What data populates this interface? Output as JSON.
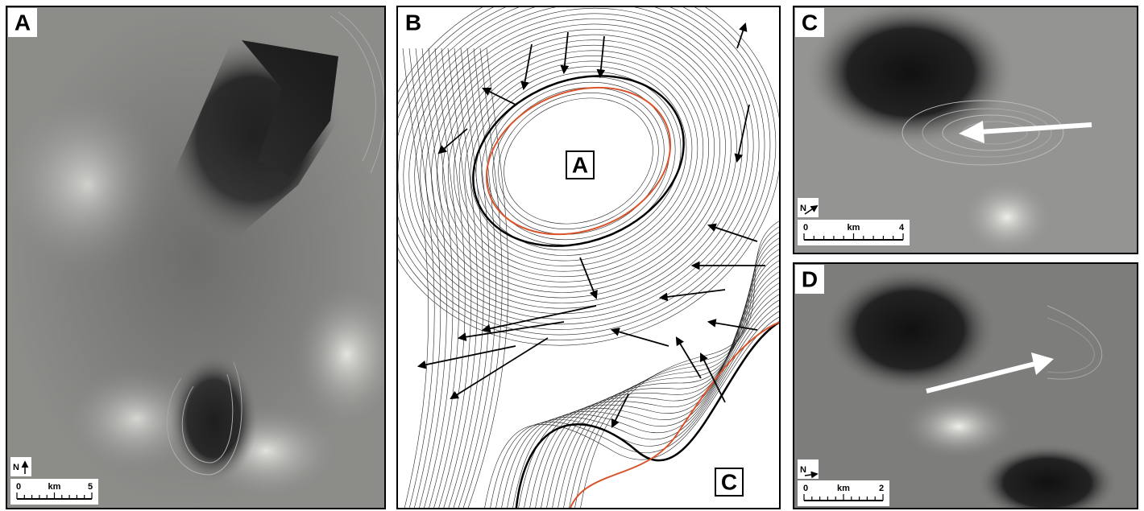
{
  "panels": [
    {
      "label": "A",
      "north": "N",
      "scale": {
        "start": 0,
        "unit": "km",
        "end": 5
      }
    },
    {
      "label": "B",
      "map_labels": [
        "A",
        "C"
      ]
    },
    {
      "label": "C",
      "north": "N",
      "scale": {
        "start": 0,
        "unit": "km",
        "end": 4
      }
    },
    {
      "label": "D",
      "north": "N",
      "scale": {
        "start": 0,
        "unit": "km",
        "end": 2
      }
    }
  ]
}
